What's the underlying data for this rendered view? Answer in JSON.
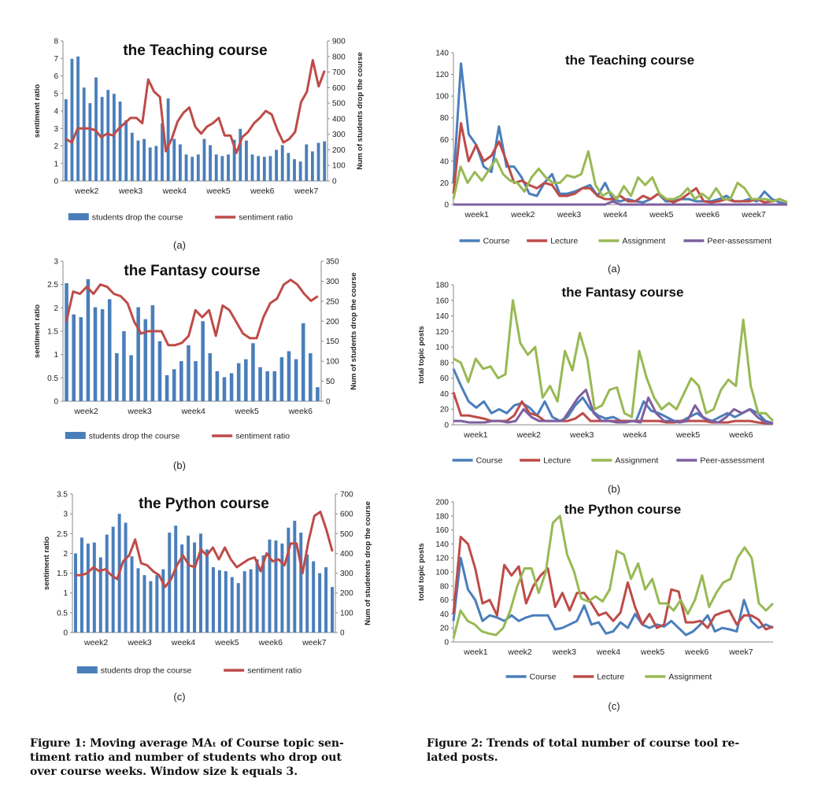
{
  "chart_data": [
    {
      "id": "fig1a",
      "type": "bar+line",
      "title": "the Teaching course",
      "ylabel": "sentiment ratio",
      "y2label": "Num of students drop the course",
      "ylim": [
        0,
        8
      ],
      "y2lim": [
        0,
        900
      ],
      "week_ticks": [
        "week2",
        "week3",
        "week4",
        "week5",
        "week6",
        "week7"
      ],
      "bar_series": "students drop the course",
      "line_series": "sentiment ratio",
      "bars": [
        525,
        785,
        800,
        600,
        500,
        665,
        540,
        585,
        560,
        510,
        390,
        310,
        260,
        270,
        215,
        225,
        370,
        530,
        270,
        235,
        170,
        155,
        170,
        270,
        230,
        170,
        160,
        170,
        265,
        335,
        260,
        170,
        160,
        155,
        160,
        200,
        230,
        180,
        140,
        125,
        235,
        190,
        245,
        255
      ],
      "line": [
        2.4,
        2.2,
        3,
        3,
        3,
        2.9,
        2.5,
        2.7,
        2.6,
        3.0,
        3.3,
        3.6,
        3.6,
        3.3,
        5.8,
        5.1,
        4.8,
        1.7,
        2.4,
        3.4,
        3.9,
        4.2,
        3.1,
        2.7,
        3.1,
        3.3,
        3.6,
        2.6,
        2.6,
        1.6,
        2.5,
        2.8,
        3.3,
        3.6,
        4.0,
        3.8,
        2.9,
        2.2,
        2.4,
        2.8,
        4.5,
        5.1,
        6.9,
        5.4,
        6.3
      ]
    },
    {
      "id": "fig1b",
      "type": "bar+line",
      "title": "the Fantasy course",
      "ylabel": "sentiment ratio",
      "y2label": "Num of students drop the course",
      "ylim": [
        0,
        3
      ],
      "y2lim": [
        0,
        350
      ],
      "week_ticks": [
        "week2",
        "week3",
        "week4",
        "week5",
        "week6"
      ],
      "bar_series": "students drop the course",
      "line_series": "sentiment ratio",
      "bars": [
        295,
        217,
        210,
        305,
        235,
        230,
        255,
        120,
        175,
        115,
        235,
        205,
        240,
        150,
        65,
        80,
        100,
        140,
        100,
        200,
        120,
        75,
        60,
        70,
        95,
        105,
        145,
        85,
        75,
        75,
        110,
        125,
        105,
        195,
        120,
        35
      ],
      "line": [
        1.7,
        2.35,
        2.3,
        2.45,
        2.3,
        2.5,
        2.45,
        2.3,
        2.25,
        2.1,
        1.7,
        1.45,
        1.5,
        1.5,
        1.5,
        1.2,
        1.2,
        1.25,
        1.4,
        1.95,
        1.8,
        1.95,
        1.4,
        2.05,
        1.95,
        1.7,
        1.45,
        1.35,
        1.35,
        1.8,
        2.1,
        2.2,
        2.5,
        2.6,
        2.5,
        2.3,
        2.15,
        2.25
      ]
    },
    {
      "id": "fig1c",
      "type": "bar+line",
      "title": "the Python course",
      "ylabel": "sentiment ratio",
      "y2label": "Num of studetents drop the course",
      "ylim": [
        0,
        3.5
      ],
      "y2lim": [
        0,
        700
      ],
      "week_ticks": [
        "week2",
        "week3",
        "week4",
        "week5",
        "week6",
        "week7"
      ],
      "bar_series": "students drop the course",
      "line_series": "sentiment ratio",
      "bars": [
        400,
        480,
        450,
        455,
        380,
        495,
        535,
        600,
        555,
        385,
        325,
        290,
        260,
        290,
        320,
        505,
        540,
        445,
        490,
        455,
        500,
        420,
        330,
        315,
        310,
        280,
        250,
        310,
        320,
        370,
        390,
        470,
        465,
        450,
        530,
        565,
        505,
        395,
        360,
        300,
        330,
        230
      ],
      "line": [
        1.45,
        1.45,
        1.5,
        1.65,
        1.55,
        1.6,
        1.45,
        1.35,
        1.8,
        1.95,
        2.35,
        1.75,
        1.7,
        1.55,
        1.45,
        1.15,
        1.35,
        1.7,
        1.95,
        1.7,
        1.65,
        2.1,
        1.95,
        2.15,
        1.85,
        2.15,
        1.85,
        1.65,
        1.75,
        1.85,
        1.9,
        1.55,
        2.0,
        1.8,
        1.85,
        1.7,
        2.25,
        2.25,
        1.5,
        2.3,
        2.95,
        3.05,
        2.6,
        2.05
      ]
    },
    {
      "id": "fig2a",
      "type": "line",
      "title": "the Teaching course",
      "ylabel": "",
      "ylim": [
        0,
        140
      ],
      "week_ticks": [
        "week1",
        "week2",
        "week3",
        "week4",
        "week5",
        "week6",
        "week7"
      ],
      "series": [
        {
          "name": "Course",
          "color": "#4a7ebb",
          "values": [
            20,
            130,
            65,
            55,
            35,
            30,
            72,
            35,
            35,
            25,
            10,
            8,
            20,
            28,
            10,
            10,
            12,
            15,
            18,
            8,
            20,
            5,
            3,
            5,
            3,
            2,
            5,
            10,
            3,
            3,
            5,
            5,
            3,
            3,
            3,
            5,
            8,
            3,
            3,
            5,
            3,
            12,
            5,
            2,
            0
          ]
        },
        {
          "name": "Lecture",
          "color": "#be4b48",
          "values": [
            10,
            75,
            40,
            55,
            40,
            45,
            58,
            40,
            20,
            22,
            18,
            15,
            20,
            18,
            8,
            8,
            10,
            15,
            15,
            8,
            5,
            5,
            8,
            3,
            3,
            8,
            5,
            10,
            5,
            2,
            5,
            10,
            15,
            3,
            2,
            3,
            5,
            3,
            3,
            3,
            5,
            2,
            3,
            5,
            2
          ]
        },
        {
          "name": "Assignment",
          "color": "#98b954",
          "values": [
            5,
            35,
            20,
            30,
            22,
            32,
            42,
            28,
            22,
            20,
            12,
            25,
            33,
            25,
            20,
            20,
            27,
            25,
            28,
            49,
            18,
            8,
            12,
            5,
            17,
            8,
            25,
            18,
            25,
            10,
            5,
            5,
            8,
            15,
            5,
            10,
            5,
            15,
            5,
            5,
            20,
            15,
            5,
            5,
            5,
            3,
            5,
            2
          ]
        },
        {
          "name": "Peer-assessment",
          "color": "#7d60a0",
          "values": [
            0,
            0,
            0,
            0,
            0,
            0,
            0,
            0,
            0,
            0,
            0,
            0,
            0,
            0,
            0,
            0,
            0,
            0,
            0,
            0,
            0,
            3,
            0,
            0,
            0,
            0,
            0,
            0,
            0,
            0,
            0,
            0,
            0,
            0,
            0,
            0,
            0,
            0,
            0,
            0,
            0,
            0,
            0,
            0,
            0
          ]
        }
      ]
    },
    {
      "id": "fig2b",
      "type": "line",
      "title": "the Fantasy course",
      "ylabel": "total topic posts",
      "ylim": [
        0,
        180
      ],
      "week_ticks": [
        "week1",
        "week2",
        "week3",
        "week4",
        "week5",
        "week6"
      ],
      "series": [
        {
          "name": "Course",
          "color": "#4a7ebb",
          "values": [
            72,
            50,
            30,
            22,
            30,
            15,
            20,
            15,
            25,
            28,
            22,
            12,
            30,
            10,
            5,
            10,
            25,
            35,
            20,
            12,
            8,
            10,
            5,
            5,
            5,
            30,
            18,
            15,
            10,
            5,
            5,
            10,
            15,
            8,
            5,
            10,
            15,
            10,
            15,
            20,
            15,
            5,
            2
          ]
        },
        {
          "name": "Lecture",
          "color": "#be4b48",
          "values": [
            42,
            12,
            12,
            10,
            8,
            5,
            5,
            5,
            12,
            30,
            15,
            12,
            5,
            5,
            5,
            5,
            8,
            15,
            5,
            5,
            5,
            5,
            5,
            5,
            5,
            5,
            5,
            5,
            3,
            3,
            5,
            5,
            5,
            5,
            3,
            3,
            3,
            5,
            5,
            5,
            3,
            2,
            2
          ]
        },
        {
          "name": "Assignment",
          "color": "#98b954",
          "values": [
            85,
            80,
            55,
            85,
            72,
            75,
            60,
            65,
            160,
            105,
            90,
            100,
            35,
            50,
            30,
            95,
            70,
            118,
            85,
            20,
            25,
            45,
            48,
            15,
            10,
            95,
            60,
            35,
            20,
            28,
            20,
            40,
            60,
            50,
            15,
            20,
            45,
            58,
            50,
            135,
            50,
            15,
            15,
            5
          ]
        },
        {
          "name": "Peer-assessment",
          "color": "#7d60a0",
          "values": [
            5,
            5,
            3,
            3,
            3,
            5,
            5,
            3,
            5,
            20,
            10,
            5,
            5,
            5,
            5,
            20,
            35,
            45,
            15,
            5,
            5,
            3,
            3,
            5,
            3,
            35,
            15,
            5,
            5,
            3,
            5,
            25,
            10,
            5,
            3,
            10,
            20,
            15,
            20,
            10,
            3,
            2
          ]
        }
      ]
    },
    {
      "id": "fig2c",
      "type": "line",
      "title": "the Python course",
      "ylabel": "total topic posts",
      "ylim": [
        0,
        200
      ],
      "week_ticks": [
        "week1",
        "week2",
        "week3",
        "week4",
        "week5",
        "week6",
        "week7"
      ],
      "series": [
        {
          "name": "Course",
          "color": "#4a7ebb",
          "values": [
            30,
            120,
            75,
            60,
            30,
            38,
            35,
            30,
            38,
            30,
            35,
            38,
            38,
            38,
            18,
            20,
            25,
            30,
            52,
            25,
            28,
            12,
            15,
            28,
            20,
            40,
            25,
            20,
            25,
            22,
            30,
            20,
            10,
            15,
            25,
            38,
            15,
            20,
            18,
            15,
            60,
            30,
            20,
            25,
            20
          ]
        },
        {
          "name": "Lecture",
          "color": "#be4b48",
          "values": [
            40,
            150,
            140,
            105,
            55,
            60,
            38,
            110,
            95,
            108,
            55,
            80,
            95,
            105,
            50,
            70,
            45,
            70,
            70,
            55,
            38,
            42,
            30,
            42,
            85,
            50,
            25,
            40,
            20,
            25,
            75,
            72,
            28,
            28,
            30,
            20,
            38,
            42,
            45,
            25,
            38,
            38,
            32,
            18,
            22
          ]
        },
        {
          "name": "Assignment",
          "color": "#98b954",
          "values": [
            5,
            45,
            30,
            25,
            15,
            12,
            10,
            20,
            45,
            80,
            105,
            105,
            70,
            100,
            170,
            180,
            125,
            100,
            62,
            58,
            65,
            58,
            75,
            130,
            125,
            90,
            112,
            75,
            90,
            55,
            55,
            45,
            60,
            40,
            60,
            95,
            50,
            70,
            85,
            90,
            120,
            135,
            120,
            55,
            45,
            55
          ]
        }
      ]
    }
  ],
  "sublabels": {
    "fig1a": "(a)",
    "fig1b": "(b)",
    "fig1c": "(c)",
    "fig2a": "(a)",
    "fig2b": "(b)",
    "fig2c": "(c)"
  },
  "captions": {
    "fig1_lines": [
      "Figure 1: Moving average MAₜ of Course topic sen-",
      "timent ratio and number of students who drop out",
      "over course weeks. Window size k equals 3."
    ],
    "fig2_lines": [
      "Figure 2: Trends of total number of course tool re-",
      "lated posts."
    ]
  }
}
